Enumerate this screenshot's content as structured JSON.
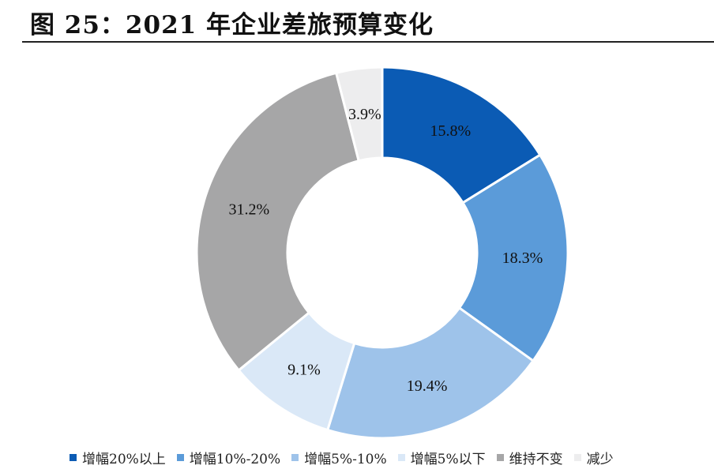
{
  "figure": {
    "title": "图  25：2021 年企业差旅预算变化"
  },
  "chart_data": {
    "type": "pie",
    "donut": true,
    "categories": [
      "增幅20%以上",
      "增幅10%-20%",
      "增幅5%-10%",
      "增幅5%以下",
      "维持不变",
      "减少"
    ],
    "values": [
      15.8,
      18.3,
      19.4,
      9.1,
      31.2,
      3.9
    ],
    "labels": [
      "15.8%",
      "18.3%",
      "19.4%",
      "9.1%",
      "31.2%",
      "3.9%"
    ],
    "colors": [
      "#0b5bb4",
      "#5b9bd9",
      "#9ec3ea",
      "#dae8f7",
      "#a6a6a7",
      "#ededee"
    ],
    "label_colors": [
      "#111111",
      "#111111",
      "#111111",
      "#111111",
      "#111111",
      "#111111"
    ],
    "legend_position": "bottom"
  }
}
